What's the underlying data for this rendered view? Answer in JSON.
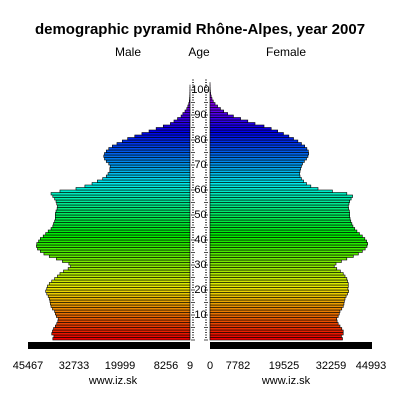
{
  "chart_data": {
    "type": "bar",
    "title": "demographic pyramid Rhône-Alpes, year 2007",
    "left_header": "Male",
    "center_header": "Age",
    "right_header": "Female",
    "age_ticks": [
      10,
      20,
      30,
      40,
      50,
      60,
      70,
      80,
      90,
      100
    ],
    "male_axis_labels": [
      "45467",
      "32733",
      "19999",
      "8256",
      "9"
    ],
    "female_axis_labels": [
      "0",
      "7782",
      "19525",
      "32259",
      "44993"
    ],
    "male_xlim": [
      0,
      45467
    ],
    "female_xlim": [
      0,
      44993
    ],
    "watermark_left": "www.iz.sk",
    "watermark_right": "www.iz.sk",
    "series": [
      {
        "name": "Male",
        "age_start": 0,
        "values": [
          38500,
          38200,
          38800,
          38600,
          38300,
          37800,
          37400,
          37100,
          37000,
          37500,
          37800,
          38000,
          38600,
          39000,
          39200,
          39300,
          39500,
          39800,
          40200,
          40500,
          40200,
          40000,
          39500,
          38800,
          38000,
          37200,
          36500,
          35500,
          34200,
          33500,
          34000,
          35800,
          37500,
          39500,
          41000,
          42000,
          42800,
          43100,
          43000,
          42500,
          42000,
          41200,
          40500,
          39800,
          39000,
          38500,
          38300,
          38000,
          37800,
          37800,
          37800,
          37600,
          37300,
          37200,
          37400,
          37600,
          38000,
          38500,
          39000,
          36500,
          32000,
          29500,
          27500,
          26000,
          24500,
          23500,
          23000,
          22500,
          22500,
          22400,
          22800,
          23500,
          24000,
          24200,
          24000,
          23500,
          22800,
          21800,
          20500,
          19000,
          17500,
          15500,
          13500,
          11500,
          9500,
          7500,
          5500,
          4500,
          3500,
          2500,
          2000,
          1400,
          900,
          600,
          350,
          200,
          120,
          70,
          40,
          20,
          10,
          5,
          0,
          0,
          0
        ]
      },
      {
        "name": "Female",
        "age_start": 0,
        "values": [
          36800,
          36500,
          37000,
          37000,
          36600,
          36100,
          35600,
          35300,
          35200,
          35600,
          35900,
          36100,
          36600,
          37000,
          37200,
          37300,
          37500,
          37800,
          38200,
          38500,
          38300,
          38400,
          38400,
          38200,
          38000,
          37500,
          37000,
          36200,
          35200,
          34500,
          35000,
          36500,
          38000,
          39800,
          41200,
          42300,
          43100,
          43600,
          43800,
          43500,
          43000,
          42300,
          41500,
          40800,
          40200,
          39700,
          39400,
          39100,
          38900,
          38800,
          38800,
          38700,
          38500,
          38400,
          38600,
          38800,
          39200,
          39600,
          38000,
          34000,
          30000,
          28000,
          26800,
          26000,
          25400,
          25000,
          24900,
          25000,
          25200,
          25400,
          25700,
          26200,
          26800,
          27200,
          27400,
          27300,
          26900,
          26300,
          25400,
          24400,
          23200,
          21900,
          20400,
          18800,
          17000,
          15000,
          12500,
          10500,
          8500,
          6500,
          4900,
          3800,
          2900,
          2100,
          1400,
          900,
          550,
          320,
          180,
          100,
          50,
          25,
          10,
          0,
          0
        ]
      }
    ]
  }
}
